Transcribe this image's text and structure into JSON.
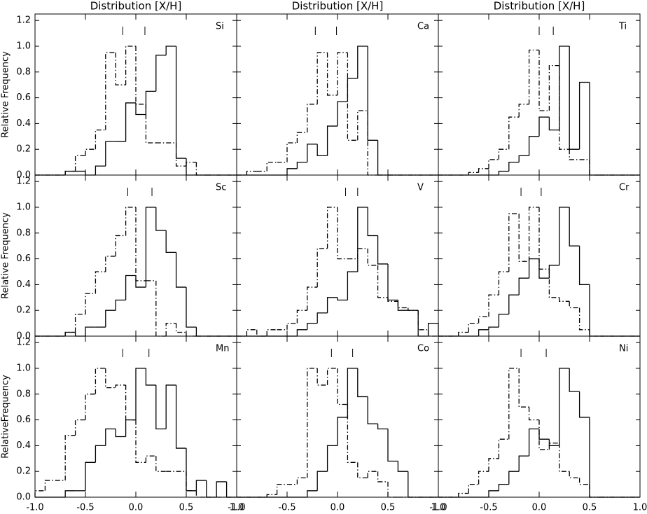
{
  "chart_data": [
    {
      "type": "histogram",
      "title": "Distribution [X/H]",
      "label": "Si",
      "ylabel": "Relative Frequency",
      "bins": [
        -1.0,
        -0.9,
        -0.8,
        -0.7,
        -0.6,
        -0.5,
        -0.4,
        -0.3,
        -0.2,
        -0.1,
        0.0,
        0.1,
        0.2,
        0.3,
        0.4,
        0.5,
        0.6,
        0.7,
        0.8,
        0.9,
        1.0
      ],
      "series": [
        {
          "color": "#000000",
          "style": "solid",
          "values": [
            0,
            0,
            0,
            0.03,
            0.03,
            0,
            0.07,
            0.26,
            0.26,
            0.56,
            0.47,
            0.65,
            0.93,
            1.0,
            0.13,
            0,
            0,
            0,
            0,
            0
          ]
        },
        {
          "color": "#000000",
          "style": "dashdot",
          "values": [
            0,
            0,
            0,
            0.03,
            0.15,
            0.2,
            0.35,
            0.95,
            0.7,
            1.0,
            0.55,
            0.25,
            0.25,
            0.25,
            0.07,
            0.1,
            0,
            0,
            0,
            0
          ]
        }
      ],
      "means": [
        -0.13,
        0.09
      ],
      "xlim": [
        -1.0,
        1.0
      ],
      "ylim": [
        0,
        1.25
      ],
      "xticks": [
        -1.0,
        -0.5,
        0.0,
        0.5,
        1.0
      ],
      "yticks": [
        {
          "value": 0,
          "label": "0.0"
        },
        {
          "value": 0.2,
          "label": "0.2"
        },
        {
          "value": 0.4,
          "label": "0.4"
        },
        {
          "value": 0.6,
          "label": "0.6"
        },
        {
          "value": 0.8,
          "label": "0.8"
        },
        {
          "value": 1.0,
          "label": "1.0"
        },
        {
          "value": 1.2,
          "label": "1.2"
        }
      ]
    },
    {
      "type": "histogram",
      "title": "Distribution [X/H]",
      "label": "Ca",
      "bins": [
        -1.0,
        -0.9,
        -0.8,
        -0.7,
        -0.6,
        -0.5,
        -0.4,
        -0.3,
        -0.2,
        -0.1,
        0.0,
        0.1,
        0.2,
        0.3,
        0.4,
        0.5,
        0.6,
        0.7,
        0.8,
        0.9,
        1.0
      ],
      "series": [
        {
          "color": "#000000",
          "style": "solid",
          "values": [
            0,
            0,
            0,
            0,
            0,
            0.05,
            0.1,
            0.24,
            0.15,
            0.38,
            0.57,
            0.75,
            1.0,
            0.27,
            0,
            0,
            0,
            0,
            0,
            0
          ]
        },
        {
          "color": "#000000",
          "style": "dashdot",
          "values": [
            0,
            0.03,
            0.03,
            0.1,
            0.1,
            0.25,
            0.33,
            0.55,
            0.95,
            0.62,
            0.95,
            0.27,
            0.5,
            0,
            0,
            0,
            0,
            0,
            0,
            0
          ]
        }
      ],
      "means": [
        -0.22,
        -0.01
      ],
      "xlim": [
        -1.0,
        1.0
      ],
      "ylim": [
        0,
        1.25
      ],
      "xticks": [
        -1.0,
        -0.5,
        0.0,
        0.5,
        1.0
      ],
      "yticks": [
        0,
        0.2,
        0.4,
        0.6,
        0.8,
        1.0,
        1.2
      ]
    },
    {
      "type": "histogram",
      "title": "Distribution [X/H]",
      "label": "Ti",
      "bins": [
        -1.0,
        -0.9,
        -0.8,
        -0.7,
        -0.6,
        -0.5,
        -0.4,
        -0.3,
        -0.2,
        -0.1,
        0.0,
        0.1,
        0.2,
        0.3,
        0.4,
        0.5,
        0.6,
        0.7,
        0.8,
        0.9,
        1.0
      ],
      "series": [
        {
          "color": "#000000",
          "style": "solid",
          "values": [
            0,
            0,
            0,
            0,
            0,
            0,
            0.03,
            0.1,
            0.15,
            0.3,
            0.45,
            0.35,
            1.0,
            0.2,
            0.72,
            0,
            0,
            0,
            0,
            0
          ]
        },
        {
          "color": "#000000",
          "style": "dashdot",
          "values": [
            0,
            0,
            0,
            0.02,
            0.05,
            0.12,
            0.2,
            0.45,
            0.55,
            0.97,
            0.5,
            0.85,
            0.2,
            0.12,
            0.12,
            0,
            0,
            0,
            0,
            0
          ]
        }
      ],
      "means": [
        0.0,
        0.14
      ],
      "xlim": [
        -1.0,
        1.0
      ],
      "ylim": [
        0,
        1.25
      ],
      "xticks": [
        -1.0,
        -0.5,
        0.0,
        0.5,
        1.0
      ],
      "yticks": [
        0,
        0.2,
        0.4,
        0.6,
        0.8,
        1.0,
        1.2
      ]
    },
    {
      "type": "histogram",
      "label": "Sc",
      "ylabel": "Relative Frequency",
      "bins": [
        -1.0,
        -0.9,
        -0.8,
        -0.7,
        -0.6,
        -0.5,
        -0.4,
        -0.3,
        -0.2,
        -0.1,
        0.0,
        0.1,
        0.2,
        0.3,
        0.4,
        0.5,
        0.6,
        0.7,
        0.8,
        0.9,
        1.0
      ],
      "series": [
        {
          "color": "#000000",
          "style": "solid",
          "values": [
            0,
            0,
            0,
            0.03,
            0,
            0.07,
            0.07,
            0.2,
            0.28,
            0.47,
            0.38,
            1.0,
            0.82,
            0.65,
            0.38,
            0.07,
            0,
            0,
            0,
            0
          ]
        },
        {
          "color": "#000000",
          "style": "dashdot",
          "values": [
            0,
            0,
            0,
            0.03,
            0.17,
            0.33,
            0.5,
            0.62,
            0.78,
            1.0,
            0.43,
            0.43,
            0,
            0.1,
            0.03,
            0,
            0,
            0,
            0,
            0
          ]
        }
      ],
      "means": [
        -0.08,
        0.16
      ],
      "xlim": [
        -1.0,
        1.0
      ],
      "ylim": [
        0,
        1.25
      ],
      "xticks": [
        -1.0,
        -0.5,
        0.0,
        0.5,
        1.0
      ],
      "yticks": [
        {
          "value": 0,
          "label": "0.0"
        },
        {
          "value": 0.2,
          "label": "0.2"
        },
        {
          "value": 0.4,
          "label": "0.4"
        },
        {
          "value": 0.6,
          "label": "0.6"
        },
        {
          "value": 0.8,
          "label": "0.8"
        },
        {
          "value": 1.0,
          "label": "1.0"
        },
        {
          "value": 1.2,
          "label": "1.2"
        }
      ]
    },
    {
      "type": "histogram",
      "label": "V",
      "bins": [
        -1.0,
        -0.9,
        -0.8,
        -0.7,
        -0.6,
        -0.5,
        -0.4,
        -0.3,
        -0.2,
        -0.1,
        0.0,
        0.1,
        0.2,
        0.3,
        0.4,
        0.5,
        0.6,
        0.7,
        0.8,
        0.9,
        1.0
      ],
      "series": [
        {
          "color": "#000000",
          "style": "solid",
          "values": [
            0,
            0,
            0,
            0,
            0,
            0,
            0.05,
            0.1,
            0.18,
            0.3,
            0.28,
            0.5,
            1.0,
            0.78,
            0.56,
            0.28,
            0.2,
            0.2,
            0,
            0.1
          ]
        },
        {
          "color": "#000000",
          "style": "dashdot",
          "values": [
            0,
            0.05,
            0,
            0.05,
            0.05,
            0.1,
            0.2,
            0.38,
            0.68,
            1.0,
            0.6,
            0.6,
            0.68,
            0.55,
            0.3,
            0.27,
            0.22,
            0.2,
            0.05,
            0
          ]
        }
      ],
      "means": [
        0.08,
        0.2
      ],
      "xlim": [
        -1.0,
        1.0
      ],
      "ylim": [
        0,
        1.25
      ],
      "xticks": [
        -1.0,
        -0.5,
        0.0,
        0.5,
        1.0
      ],
      "yticks": [
        0,
        0.2,
        0.4,
        0.6,
        0.8,
        1.0,
        1.2
      ]
    },
    {
      "type": "histogram",
      "label": "Cr",
      "bins": [
        -1.0,
        -0.9,
        -0.8,
        -0.7,
        -0.6,
        -0.5,
        -0.4,
        -0.3,
        -0.2,
        -0.1,
        0.0,
        0.1,
        0.2,
        0.3,
        0.4,
        0.5,
        0.6,
        0.7,
        0.8,
        0.9,
        1.0
      ],
      "series": [
        {
          "color": "#000000",
          "style": "solid",
          "values": [
            0,
            0,
            0,
            0,
            0.05,
            0.07,
            0.17,
            0.32,
            0.45,
            0.6,
            0.45,
            0.55,
            1.0,
            0.7,
            0.4,
            0,
            0,
            0,
            0,
            0
          ]
        },
        {
          "color": "#000000",
          "style": "dashdot",
          "values": [
            0,
            0,
            0.03,
            0.1,
            0.15,
            0.32,
            0.5,
            0.95,
            0.58,
            1.0,
            0.52,
            0.3,
            0.27,
            0.22,
            0.05,
            0,
            0,
            0,
            0,
            0
          ]
        }
      ],
      "means": [
        -0.18,
        0.02
      ],
      "xlim": [
        -1.0,
        1.0
      ],
      "ylim": [
        0,
        1.25
      ],
      "xticks": [
        -1.0,
        -0.5,
        0.0,
        0.5,
        1.0
      ],
      "yticks": [
        0,
        0.2,
        0.4,
        0.6,
        0.8,
        1.0,
        1.2
      ]
    },
    {
      "type": "histogram",
      "label": "Mn",
      "ylabel": "RelativeFrequency",
      "bins": [
        -1.0,
        -0.9,
        -0.8,
        -0.7,
        -0.6,
        -0.5,
        -0.4,
        -0.3,
        -0.2,
        -0.1,
        0.0,
        0.1,
        0.2,
        0.3,
        0.4,
        0.5,
        0.6,
        0.7,
        0.8,
        0.9,
        1.0
      ],
      "series": [
        {
          "color": "#000000",
          "style": "solid",
          "values": [
            0,
            0,
            0,
            0.05,
            0.05,
            0.27,
            0.4,
            0.53,
            0.47,
            0.6,
            1.0,
            0.87,
            0.53,
            0.87,
            0.38,
            0.05,
            0.13,
            0,
            0.12,
            0
          ]
        },
        {
          "color": "#000000",
          "style": "dashdot",
          "values": [
            0.05,
            0.13,
            0.13,
            0.48,
            0.6,
            0.8,
            1.0,
            0.85,
            0.87,
            0.6,
            0.27,
            0.32,
            0.2,
            0.2,
            0.2,
            0.05,
            0,
            0,
            0,
            0
          ]
        }
      ],
      "means": [
        -0.13,
        0.13
      ],
      "xlim": [
        -1.0,
        1.0
      ],
      "ylim": [
        0,
        1.25
      ],
      "xticks": [
        {
          "value": -1.0,
          "label": "-1.0"
        },
        {
          "value": -0.5,
          "label": "-0.5"
        },
        {
          "value": 0.0,
          "label": "0.0"
        },
        {
          "value": 0.5,
          "label": "0.5"
        },
        {
          "value": 1.0,
          "label": "1.0"
        }
      ],
      "yticks": [
        {
          "value": 0,
          "label": "0.0"
        },
        {
          "value": 0.2,
          "label": "0.2"
        },
        {
          "value": 0.4,
          "label": "0.4"
        },
        {
          "value": 0.6,
          "label": "0.6"
        },
        {
          "value": 0.8,
          "label": "0.8"
        },
        {
          "value": 1.0,
          "label": "1.0"
        },
        {
          "value": 1.2,
          "label": "1.2"
        }
      ]
    },
    {
      "type": "histogram",
      "label": "Co",
      "bins": [
        -1.0,
        -0.9,
        -0.8,
        -0.7,
        -0.6,
        -0.5,
        -0.4,
        -0.3,
        -0.2,
        -0.1,
        0.0,
        0.1,
        0.2,
        0.3,
        0.4,
        0.5,
        0.6,
        0.7,
        0.8,
        0.9,
        1.0
      ],
      "series": [
        {
          "color": "#000000",
          "style": "solid",
          "values": [
            0,
            0,
            0,
            0,
            0,
            0,
            0,
            0.05,
            0.2,
            0.4,
            0.62,
            1.0,
            0.78,
            0.57,
            0.53,
            0.28,
            0.2,
            0,
            0,
            0
          ]
        },
        {
          "color": "#000000",
          "style": "dashdot",
          "values": [
            0,
            0,
            0,
            0.02,
            0.1,
            0.1,
            0.15,
            1.0,
            0.87,
            1.0,
            0.72,
            0.27,
            0.15,
            0.2,
            0.12,
            0,
            0,
            0,
            0,
            0
          ]
        }
      ],
      "means": [
        -0.06,
        0.15
      ],
      "xlim": [
        -1.0,
        1.0
      ],
      "ylim": [
        0,
        1.25
      ],
      "xticks": [
        {
          "value": -1.0,
          "label": "-1.0"
        },
        {
          "value": -0.5,
          "label": "-0.5"
        },
        {
          "value": 0.0,
          "label": "0.0"
        },
        {
          "value": 0.5,
          "label": "0.5"
        },
        {
          "value": 1.0,
          "label": "1.0"
        }
      ],
      "yticks": [
        0,
        0.2,
        0.4,
        0.6,
        0.8,
        1.0,
        1.2
      ]
    },
    {
      "type": "histogram",
      "label": "Ni",
      "bins": [
        -1.0,
        -0.9,
        -0.8,
        -0.7,
        -0.6,
        -0.5,
        -0.4,
        -0.3,
        -0.2,
        -0.1,
        0.0,
        0.1,
        0.2,
        0.3,
        0.4,
        0.5,
        0.6,
        0.7,
        0.8,
        0.9,
        1.0
      ],
      "series": [
        {
          "color": "#000000",
          "style": "solid",
          "values": [
            0,
            0,
            0,
            0,
            0,
            0.05,
            0.1,
            0.2,
            0.32,
            0.53,
            0.45,
            0.4,
            1.0,
            0.82,
            0.62,
            0,
            0,
            0,
            0,
            0
          ]
        },
        {
          "color": "#000000",
          "style": "dashdot",
          "values": [
            0,
            0,
            0.03,
            0.1,
            0.2,
            0.3,
            0.45,
            1.0,
            0.7,
            0.6,
            0.37,
            0.42,
            0.2,
            0.15,
            0.1,
            0,
            0,
            0,
            0,
            0
          ]
        }
      ],
      "means": [
        -0.18,
        0.07
      ],
      "xlim": [
        -1.0,
        1.0
      ],
      "ylim": [
        0,
        1.25
      ],
      "xticks": [
        {
          "value": -1.0,
          "label": "-1.0"
        },
        {
          "value": -0.5,
          "label": "-0.5"
        },
        {
          "value": 0.0,
          "label": "0.0"
        },
        {
          "value": 0.5,
          "label": "0.5"
        },
        {
          "value": 1.0,
          "label": "1.0"
        }
      ],
      "yticks": [
        0,
        0.2,
        0.4,
        0.6,
        0.8,
        1.0,
        1.2
      ]
    }
  ]
}
